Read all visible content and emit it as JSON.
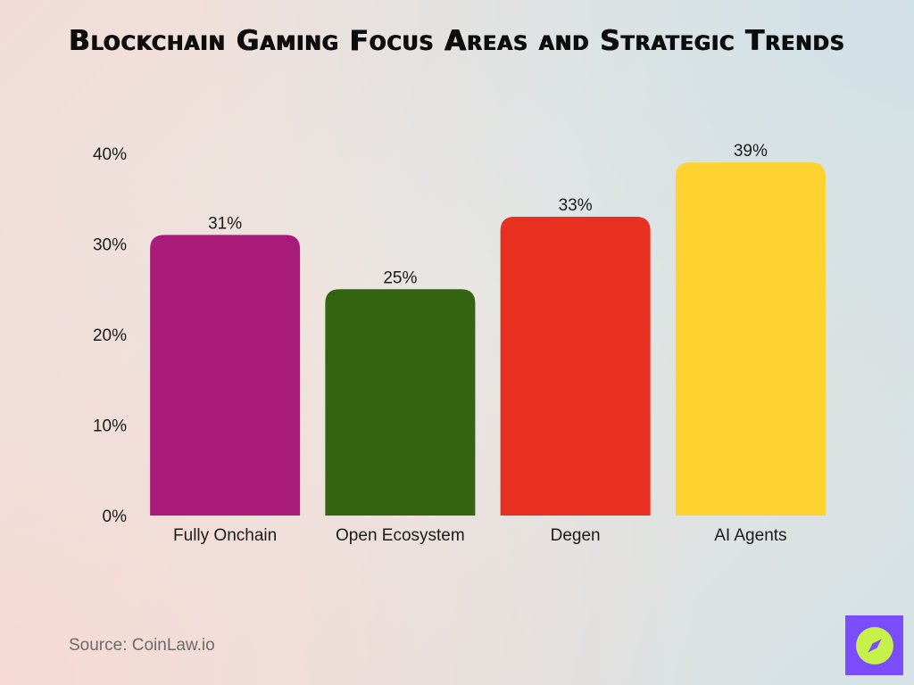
{
  "title": "Blockchain Gaming Focus Areas and Strategic Trends",
  "source": "Source: CoinLaw.io",
  "chart_data": {
    "type": "bar",
    "title": "Blockchain Gaming Focus Areas and Strategic Trends",
    "xlabel": "",
    "ylabel": "",
    "categories": [
      "Fully Onchain",
      "Open Ecosystem",
      "Degen",
      "AI Agents"
    ],
    "values": [
      31,
      25,
      33,
      39
    ],
    "data_labels": [
      "31%",
      "25%",
      "33%",
      "39%"
    ],
    "colors": [
      "#a91b78",
      "#346311",
      "#e83020",
      "#fed330"
    ],
    "ylim": [
      0,
      40
    ],
    "yticks": [
      0,
      10,
      20,
      30,
      40
    ],
    "ytick_labels": [
      "0%",
      "10%",
      "20%",
      "30%",
      "40%"
    ],
    "grid": false,
    "legend": "none"
  },
  "logo": {
    "icon": "compass-icon",
    "bg_color": "#7b4dff",
    "fg_color": "#c6f04a"
  }
}
